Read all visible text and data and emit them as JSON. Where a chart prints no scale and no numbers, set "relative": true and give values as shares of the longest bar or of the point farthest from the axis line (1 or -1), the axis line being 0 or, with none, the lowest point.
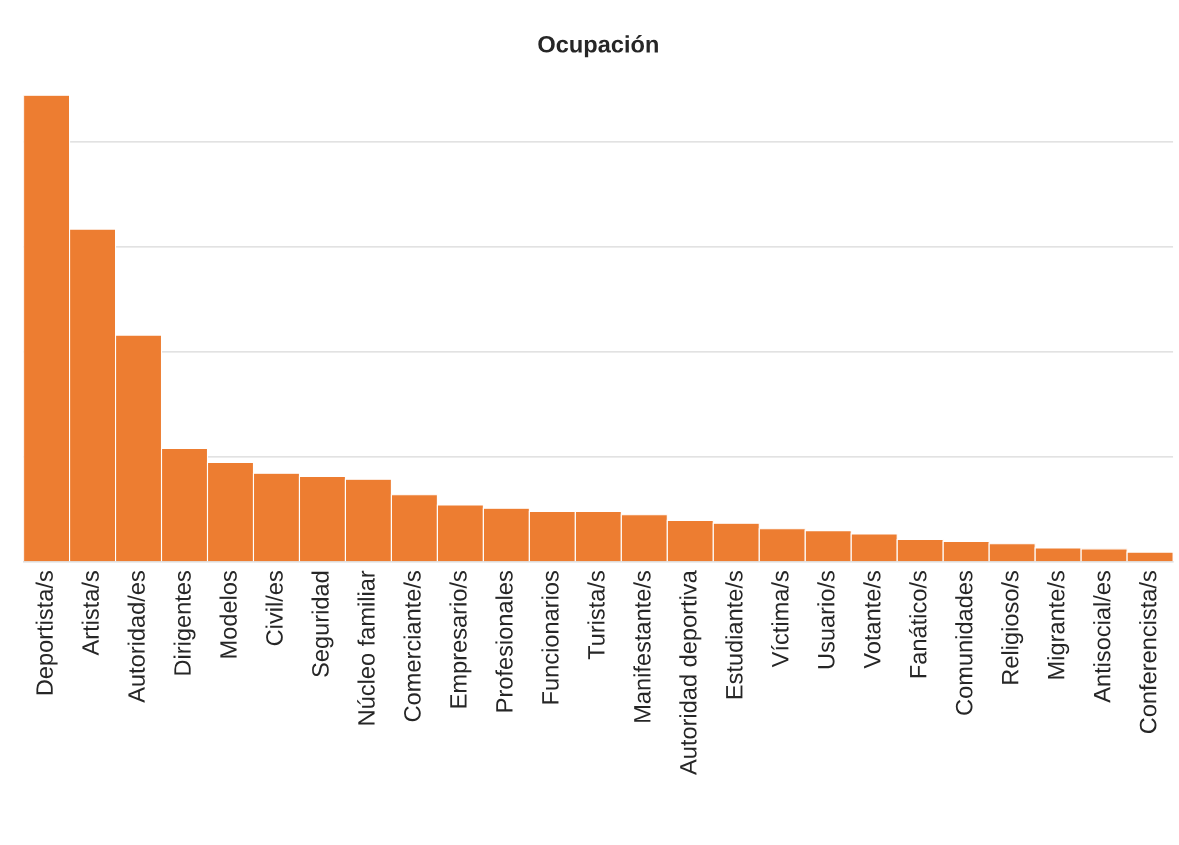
{
  "chart_data": {
    "type": "bar",
    "title": "Ocupación",
    "relative": true,
    "grid": "y",
    "color": "#ed7d31",
    "categories": [
      "Deportista/s",
      "Artista/s",
      "Autoridad/es",
      "Dirigentes",
      "Modelos",
      "Civil/es",
      "Seguridad",
      "Núcleo familiar",
      "Comerciante/s",
      "Empresario/s",
      "Profesionales",
      "Funcionarios",
      "Turista/s",
      "Manifestante/s",
      "Autoridad deportiva",
      "Estudiante/s",
      "Víctima/s",
      "Usuario/s",
      "Votante/s",
      "Fanático/s",
      "Comunidades",
      "Religioso/s",
      "Migrante/s",
      "Antisocial/es",
      "Conferencista/s"
    ],
    "values": [
      1,
      0.713,
      0.486,
      0.243,
      0.213,
      0.19,
      0.183,
      0.177,
      0.144,
      0.122,
      0.115,
      0.108,
      0.108,
      0.101,
      0.089,
      0.083,
      0.071,
      0.067,
      0.06,
      0.048,
      0.044,
      0.039,
      0.03,
      0.028,
      0.021
    ]
  }
}
